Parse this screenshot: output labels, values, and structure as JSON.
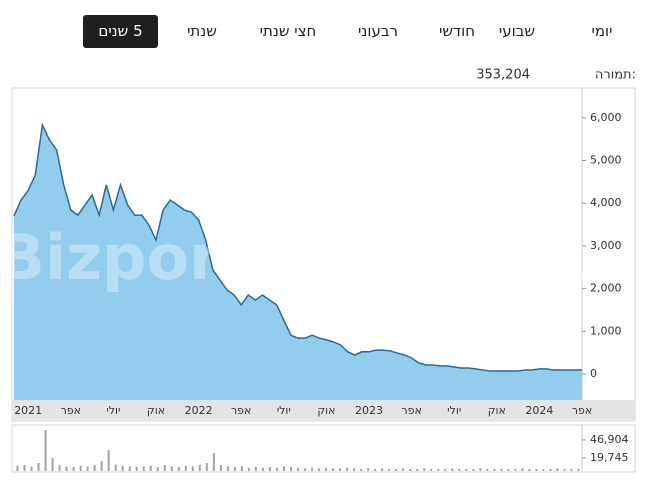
{
  "tabs": [
    "יומי",
    "שבועי",
    "חודשי",
    "רבעוני",
    "חצי שנתי",
    "שנתי",
    "5 שנים"
  ],
  "header": {
    "return_label": "תמורה:",
    "return_value": "353,204"
  },
  "chart_data": [
    {
      "type": "area",
      "watermark": "Bizportal",
      "color": "#93cdee",
      "line_color": "#2b6a95",
      "categories": [
        null,
        null,
        "2021",
        null,
        null,
        null,
        null,
        null,
        "אפר",
        null,
        null,
        null,
        null,
        null,
        "יולי",
        null,
        null,
        null,
        null,
        null,
        "אוק",
        null,
        null,
        null,
        null,
        null,
        "2022",
        null,
        null,
        null,
        null,
        null,
        "אפר",
        null,
        null,
        null,
        null,
        null,
        "יולי",
        null,
        null,
        null,
        null,
        null,
        "אוק",
        null,
        null,
        null,
        null,
        null,
        "2023",
        null,
        null,
        null,
        null,
        null,
        "אפר",
        null,
        null,
        null,
        null,
        null,
        "יולי",
        null,
        null,
        null,
        null,
        null,
        "אוק",
        null,
        null,
        null,
        null,
        null,
        "2024",
        null,
        null,
        null,
        null,
        null,
        "אפר"
      ],
      "values": [
        3700,
        4075,
        4300,
        4660,
        5830,
        5480,
        5250,
        4430,
        3840,
        3720,
        3960,
        4190,
        3720,
        4430,
        3840,
        4430,
        3960,
        3720,
        3720,
        3490,
        3140,
        3840,
        4075,
        3960,
        3840,
        3790,
        3610,
        3140,
        2440,
        2200,
        1970,
        1850,
        1620,
        1850,
        1730,
        1850,
        1730,
        1620,
        1260,
        910,
        840,
        840,
        910,
        840,
        800,
        750,
        680,
        520,
        445,
        520,
        520,
        560,
        560,
        540,
        490,
        445,
        375,
        260,
        210,
        210,
        190,
        190,
        165,
        140,
        140,
        120,
        95,
        70,
        70,
        70,
        70,
        70,
        95,
        95,
        120,
        120,
        95,
        95,
        95,
        95,
        95
      ],
      "ylim": [
        -609,
        6698
      ],
      "yticks": [
        0,
        {
          "value": 1000,
          "label": "1,000"
        },
        {
          "value": 2000,
          "label": "2,000"
        },
        {
          "value": 3000,
          "label": "3,000"
        },
        {
          "value": 4000,
          "label": "4,000"
        },
        {
          "value": 5000,
          "label": "5,000"
        },
        {
          "value": 6000,
          "label": "6,000"
        }
      ]
    },
    {
      "type": "bar",
      "color": "#a3a3a3",
      "values": [
        8000,
        9000,
        7000,
        12000,
        62000,
        20000,
        9000,
        7000,
        6000,
        8000,
        7000,
        9000,
        15000,
        31700,
        10000,
        8000,
        7000,
        6000,
        7000,
        8000,
        6000,
        9000,
        7000,
        6000,
        8000,
        7000,
        9000,
        12000,
        27200,
        9000,
        7000,
        6000,
        7000,
        5000,
        6000,
        5000,
        6000,
        5000,
        7000,
        6000,
        5000,
        4000,
        5000,
        4000,
        5000,
        4000,
        4000,
        5000,
        4000,
        3000,
        4000,
        3000,
        4000,
        3000,
        3000,
        4000,
        3000,
        3000,
        4000,
        3000,
        3000,
        3000,
        4000,
        3000,
        3000,
        3000,
        4000,
        3000,
        3000,
        3000,
        3000,
        3000,
        4000,
        3000,
        3000,
        3000,
        3000,
        4000,
        3000,
        3000,
        3000
      ],
      "ylim": [
        0,
        69500
      ],
      "yticks": [
        {
          "value": 19745,
          "label": "19,745"
        },
        {
          "value": 46904,
          "label": "46,904"
        }
      ]
    }
  ]
}
